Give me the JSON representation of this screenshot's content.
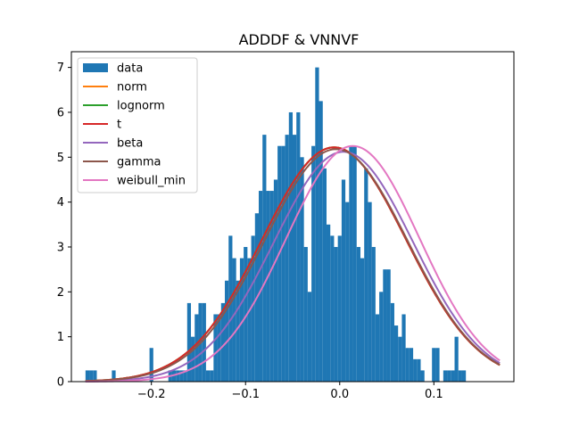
{
  "chart_data": {
    "type": "histogram",
    "title": "ADDDF & VNNVF",
    "xlabel": "",
    "ylabel": "",
    "xlim": [
      -0.285,
      0.185
    ],
    "ylim": [
      0,
      7.35
    ],
    "x_ticks": [
      -0.2,
      -0.1,
      0.0,
      0.1
    ],
    "x_tick_labels": [
      "−0.2",
      "−0.1",
      "0.0",
      "0.1"
    ],
    "y_ticks": [
      0,
      1,
      2,
      3,
      4,
      5,
      6,
      7
    ],
    "y_tick_labels": [
      "0",
      "1",
      "2",
      "3",
      "4",
      "5",
      "6",
      "7"
    ],
    "grid": false,
    "legend_position": "upper left",
    "histogram": {
      "name": "data",
      "color": "#1f77b4",
      "bin_start": -0.27,
      "bin_width": 0.004,
      "values": [
        0.25,
        0.25,
        0.25,
        0,
        0,
        0,
        0,
        0.25,
        0,
        0,
        0,
        0,
        0,
        0,
        0,
        0,
        0,
        0.75,
        0,
        0,
        0,
        0,
        0.25,
        0.25,
        0.25,
        0.25,
        0.25,
        1.75,
        1.0,
        1.5,
        1.75,
        1.75,
        0.25,
        0.25,
        1.5,
        1.5,
        1.75,
        2.25,
        3.25,
        2.75,
        2.25,
        2.75,
        3.0,
        2.75,
        3.25,
        3.75,
        4.25,
        5.5,
        4.25,
        4.25,
        4.5,
        5.25,
        5.25,
        5.5,
        6.0,
        5.5,
        6.0,
        5.0,
        3.0,
        2.0,
        5.25,
        7.0,
        6.25,
        4.75,
        3.5,
        3.25,
        3.0,
        3.25,
        4.5,
        4.0,
        5.25,
        5.25,
        3.0,
        2.75,
        4.75,
        4.0,
        3.0,
        1.5,
        2.0,
        2.5,
        2.5,
        1.75,
        1.25,
        1.0,
        1.5,
        0.75,
        0.75,
        0.5,
        0.5,
        0.25,
        0,
        0,
        0.75,
        0.75,
        0,
        0.25,
        0.25,
        0.25,
        1.0,
        0.25,
        0.25
      ]
    },
    "series": [
      {
        "name": "norm",
        "color": "#ff7f0e",
        "mu": -0.006,
        "sigma": 0.0765,
        "amplitude": 5.22
      },
      {
        "name": "lognorm",
        "color": "#2ca02c",
        "mu": -0.006,
        "sigma": 0.0765,
        "amplitude": 5.22
      },
      {
        "name": "t",
        "color": "#d62728",
        "mu": -0.006,
        "sigma": 0.0765,
        "amplitude": 5.22
      },
      {
        "name": "beta",
        "color": "#9467bd",
        "mu": 0.004,
        "sigma": 0.074,
        "amplitude": 5.12
      },
      {
        "name": "gamma",
        "color": "#8c564b",
        "mu": -0.004,
        "sigma": 0.076,
        "amplitude": 5.18
      },
      {
        "name": "weibull_min",
        "color": "#e377c2",
        "mu": 0.014,
        "sigma": 0.071,
        "amplitude": 5.25
      }
    ],
    "legend": [
      "data",
      "norm",
      "lognorm",
      "t",
      "beta",
      "gamma",
      "weibull_min"
    ]
  }
}
